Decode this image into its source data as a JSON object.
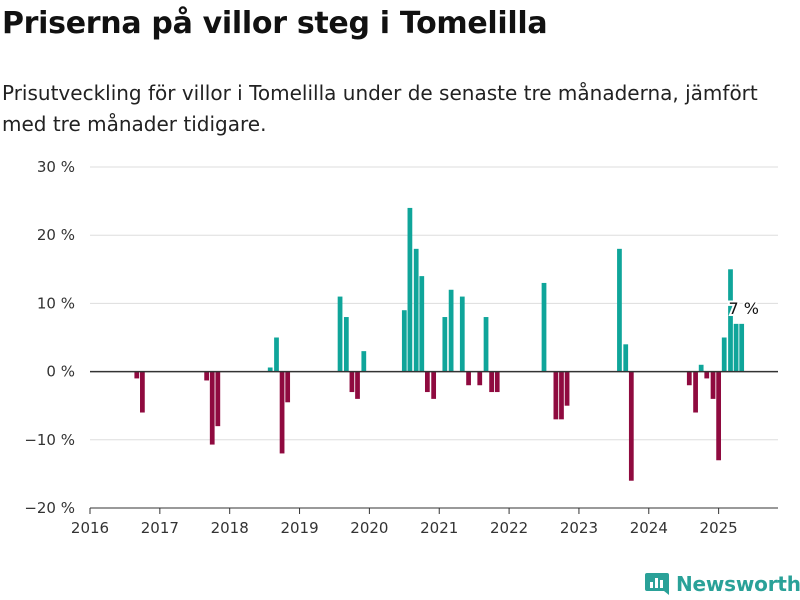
{
  "page": {
    "title": "Priserna på villor steg i Tomelilla",
    "subtitle": "Prisutveckling för villor i Tomelilla under de senaste tre månaderna, jämfört med tre månader tidigare.",
    "brand": "Newsworthy"
  },
  "colors": {
    "positive": "#0fa59a",
    "negative": "#8f0a3f",
    "grid": "#dddddd",
    "zero_line": "#333333",
    "brand": "#2aa198"
  },
  "chart_data": {
    "type": "bar",
    "title": "Priserna på villor steg i Tomelilla",
    "xlabel": "",
    "ylabel": "",
    "x_range": [
      2016,
      2025.85
    ],
    "ylim": [
      -20,
      30
    ],
    "y_ticks": [
      -20,
      -10,
      0,
      10,
      20,
      30
    ],
    "y_tick_labels": [
      "−20 %",
      "−10 %",
      "0 %",
      "10 %",
      "20 %",
      "30 %"
    ],
    "x_ticks": [
      2016,
      2017,
      2018,
      2019,
      2020,
      2021,
      2022,
      2023,
      2024,
      2025
    ],
    "x_tick_labels": [
      "2016",
      "2017",
      "2018",
      "2019",
      "2020",
      "2021",
      "2022",
      "2023",
      "2024",
      "2025"
    ],
    "grid": true,
    "bar_width_years": 0.068,
    "x": [
      2016.67,
      2016.75,
      2017.67,
      2017.75,
      2017.83,
      2018.58,
      2018.67,
      2018.75,
      2018.83,
      2019.58,
      2019.67,
      2019.75,
      2019.83,
      2019.92,
      2020.5,
      2020.58,
      2020.67,
      2020.75,
      2020.83,
      2020.92,
      2021.08,
      2021.17,
      2021.33,
      2021.42,
      2021.58,
      2021.67,
      2021.75,
      2021.83,
      2022.5,
      2022.67,
      2022.75,
      2022.83,
      2023.58,
      2023.67,
      2023.75,
      2024.58,
      2024.67,
      2024.75,
      2024.83,
      2024.92,
      2025.0,
      2025.08,
      2025.17,
      2025.25,
      2025.33
    ],
    "values": [
      -1,
      -6,
      -1.3,
      -10.7,
      -8,
      0.6,
      5,
      -12,
      -4.5,
      11,
      8,
      -3,
      -4,
      3,
      9,
      24,
      18,
      14,
      -3,
      -4,
      8,
      12,
      11,
      -2,
      -2,
      8,
      -3,
      -3,
      13,
      -7,
      -7,
      -5,
      18,
      4,
      -16,
      -2,
      -6,
      1,
      -1,
      -4,
      -13,
      5,
      15,
      7,
      7
    ],
    "annotations": [
      {
        "x": 2025.33,
        "y": 7,
        "text": "7 %"
      }
    ]
  }
}
